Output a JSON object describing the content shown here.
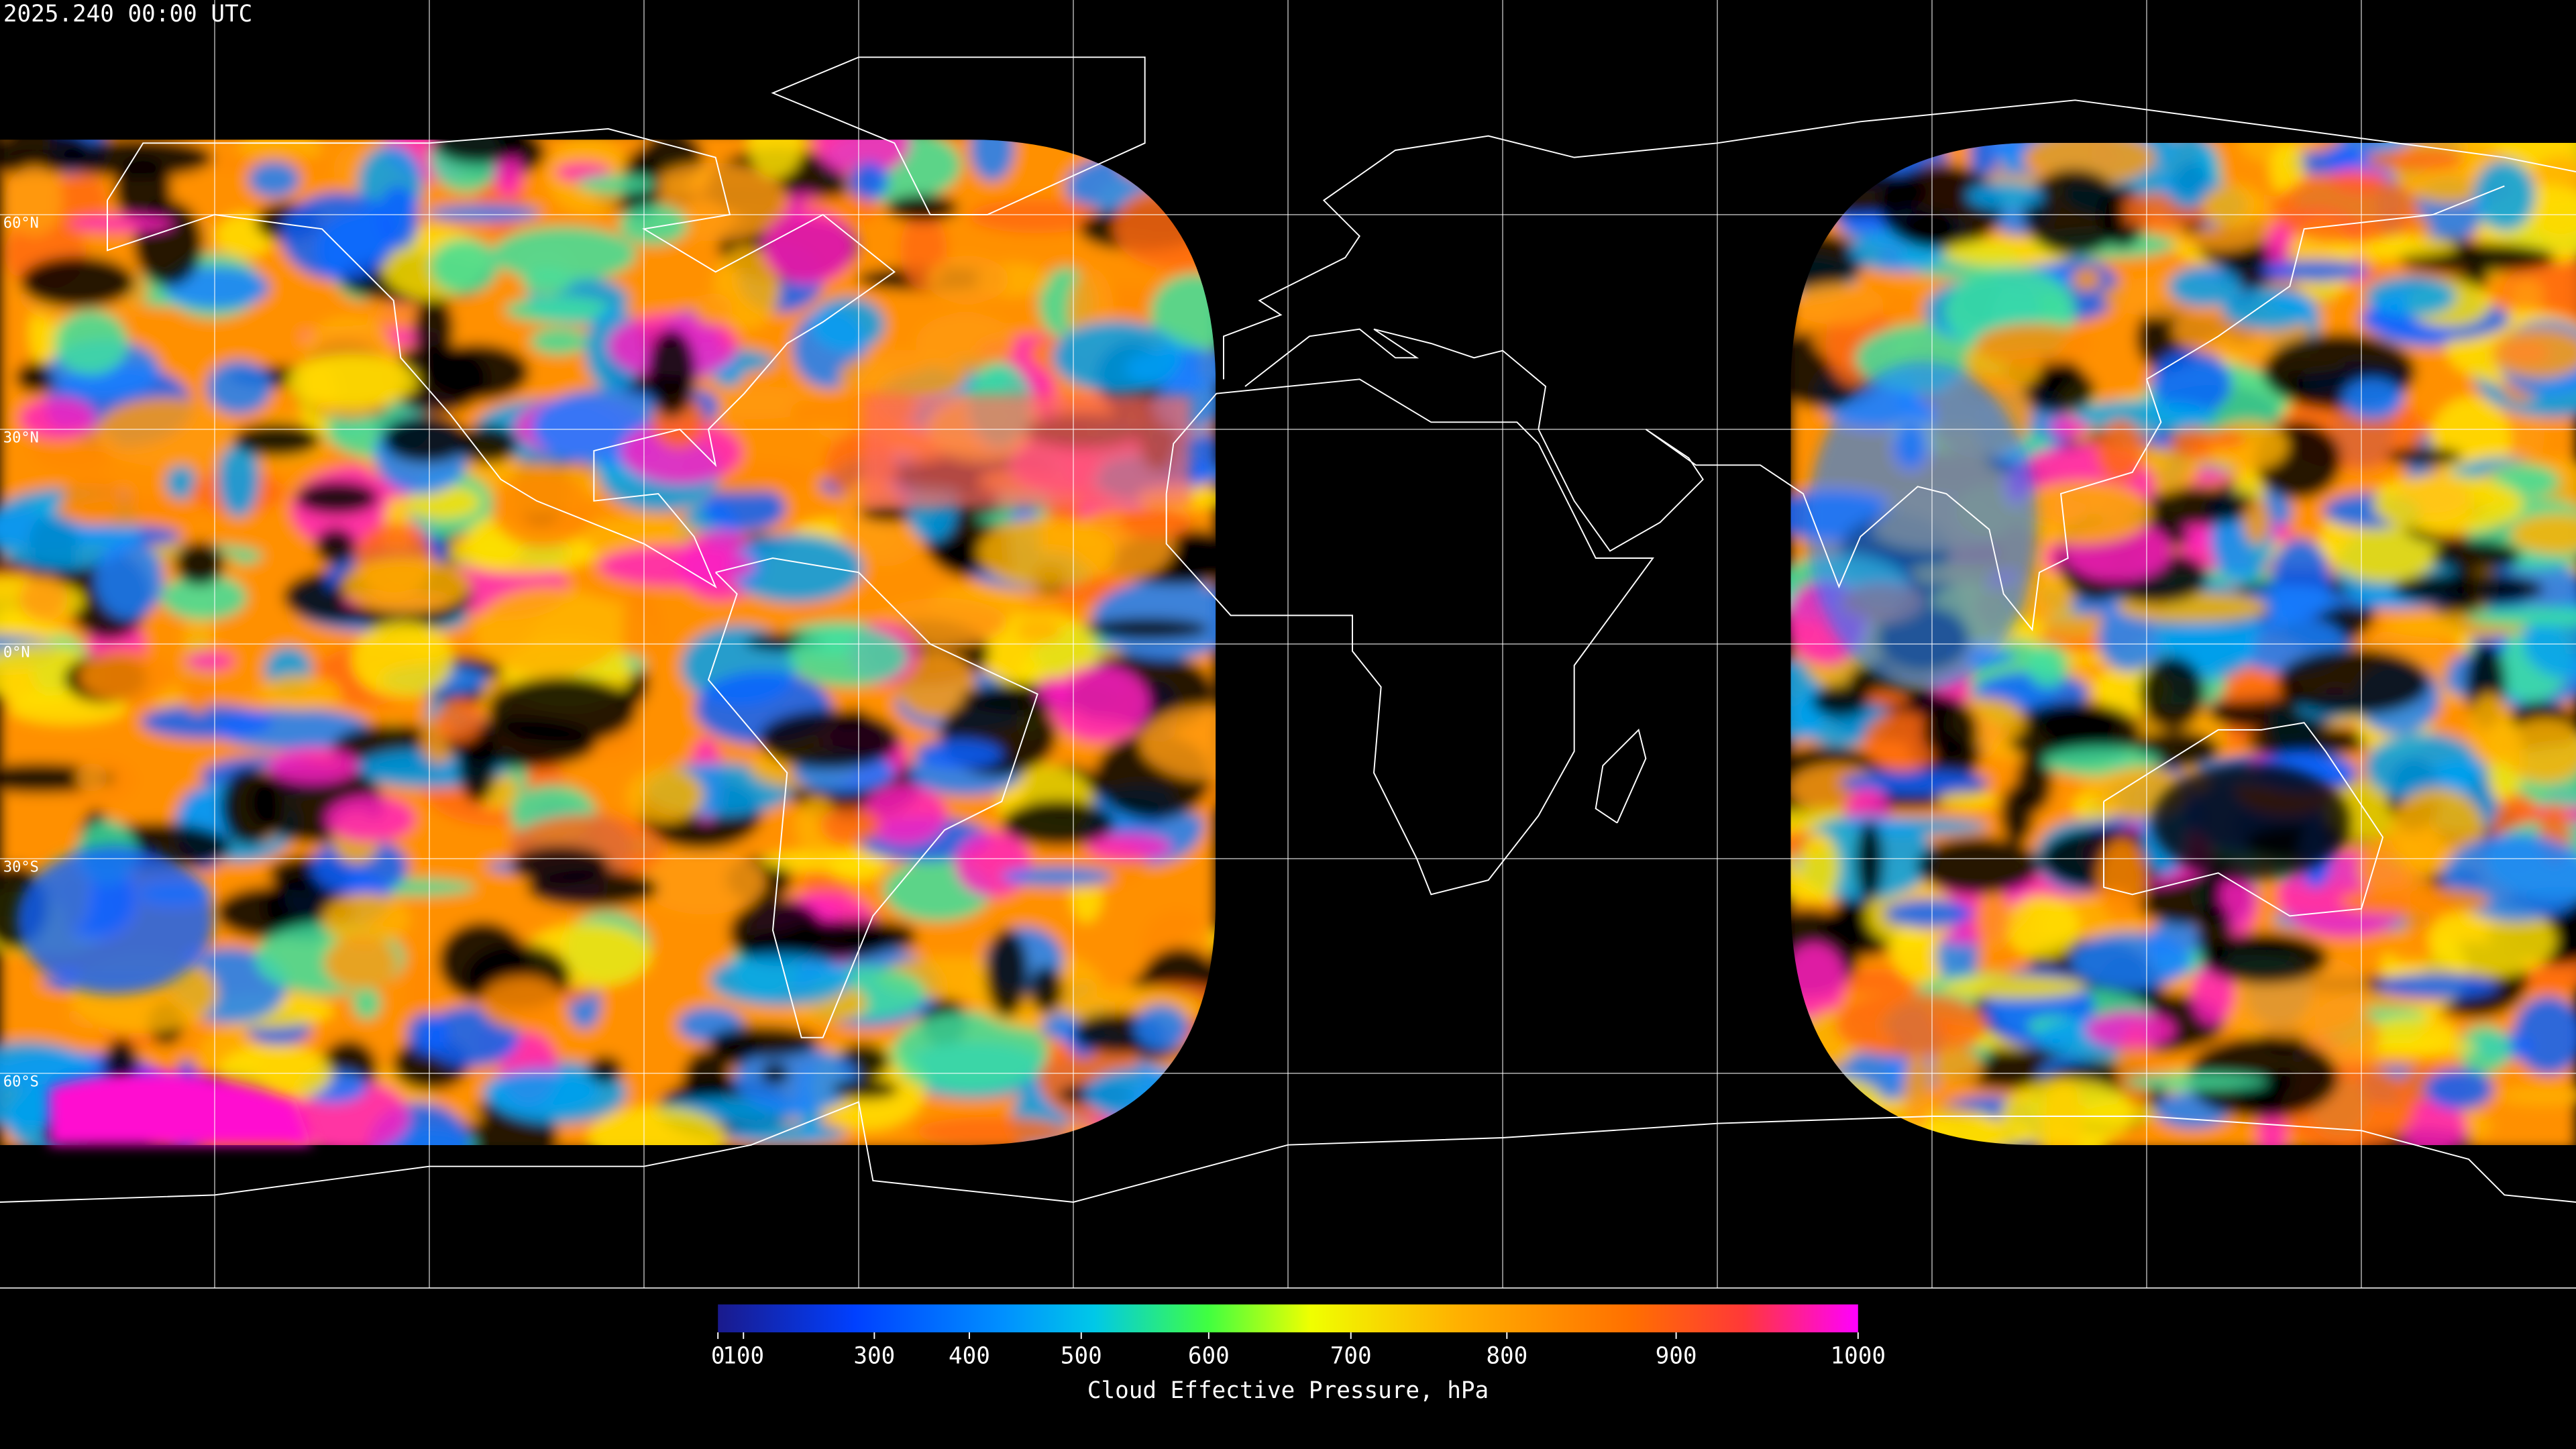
{
  "title": "2025.240 00:00 UTC",
  "map": {
    "lat_labels": [
      "60°N",
      "30°N",
      "0°N",
      "30°S",
      "60°S"
    ]
  },
  "colorbar": {
    "label": "Cloud Effective Pressure, hPa",
    "range": [
      0,
      1000
    ],
    "ticks": [
      0,
      100,
      300,
      400,
      500,
      600,
      700,
      800,
      900,
      1000
    ]
  }
}
